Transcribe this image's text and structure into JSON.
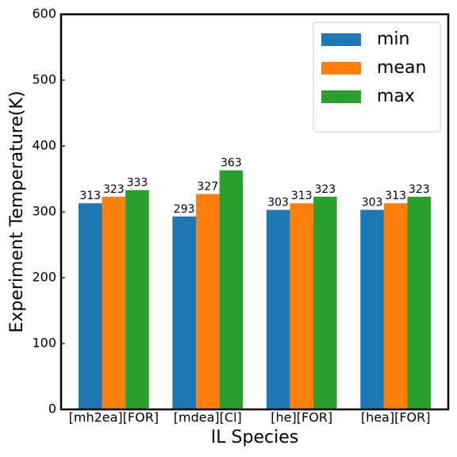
{
  "chart_data": {
    "type": "bar",
    "xlabel": "IL Species",
    "ylabel": "Experiment Temperature(K)",
    "categories": [
      "[mh2ea][FOR]",
      "[mdea][Cl]",
      "[he][FOR]",
      "[hea][FOR]"
    ],
    "series": [
      {
        "name": "min",
        "color": "#1f77b4",
        "values": [
          313,
          293,
          303,
          303
        ]
      },
      {
        "name": "mean",
        "color": "#ff7f0e",
        "values": [
          323,
          327,
          313,
          313
        ]
      },
      {
        "name": "max",
        "color": "#2ca02c",
        "values": [
          333,
          363,
          323,
          323
        ]
      }
    ],
    "ylim": [
      0,
      600
    ],
    "yticks": [
      0,
      100,
      200,
      300,
      400,
      500,
      600
    ],
    "legend": "upper right",
    "grid": false
  }
}
